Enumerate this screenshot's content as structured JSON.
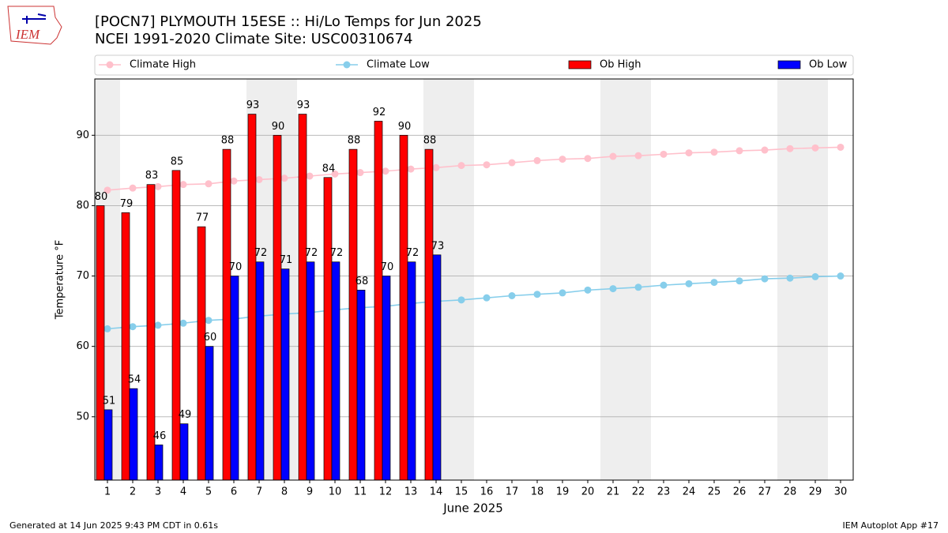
{
  "logo": "IEM",
  "chart_data": {
    "type": "bar",
    "title": "[POCN7] PLYMOUTH 15ESE :: Hi/Lo Temps for Jun 2025",
    "subtitle": "NCEI 1991-2020 Climate Site: USC00310674",
    "x_label": "June 2025",
    "y_label": "Temperature °F",
    "x": [
      1,
      2,
      3,
      4,
      5,
      6,
      7,
      8,
      9,
      10,
      11,
      12,
      13,
      14,
      15,
      16,
      17,
      18,
      19,
      20,
      21,
      22,
      23,
      24,
      25,
      26,
      27,
      28,
      29,
      30
    ],
    "xlim": [
      0.5,
      30.5
    ],
    "xticks": [
      1,
      2,
      3,
      4,
      5,
      6,
      7,
      8,
      9,
      10,
      11,
      12,
      13,
      14,
      15,
      16,
      17,
      18,
      19,
      20,
      21,
      22,
      23,
      24,
      25,
      26,
      27,
      28,
      29,
      30
    ],
    "ylim": [
      41,
      98
    ],
    "yticks": [
      50,
      60,
      70,
      80,
      90
    ],
    "grid": true,
    "shaded_x": [
      1,
      7,
      8,
      14,
      15,
      21,
      22,
      28,
      29
    ],
    "shade_color": "#eeeeee",
    "legend": "top",
    "series": [
      {
        "name": "Climate High",
        "kind": "line",
        "color": "#ffc0cb",
        "values": [
          82.2,
          82.5,
          82.7,
          83.0,
          83.1,
          83.5,
          83.7,
          83.9,
          84.2,
          84.5,
          84.7,
          84.9,
          85.2,
          85.4,
          85.7,
          85.8,
          86.1,
          86.4,
          86.6,
          86.7,
          87.0,
          87.1,
          87.3,
          87.5,
          87.6,
          87.8,
          87.9,
          88.1,
          88.2,
          88.3
        ]
      },
      {
        "name": "Climate Low",
        "kind": "line",
        "color": "#87ceeb",
        "values": [
          62.5,
          62.8,
          63.0,
          63.3,
          63.7,
          63.9,
          64.3,
          64.6,
          64.8,
          65.2,
          65.5,
          65.7,
          66.1,
          66.4,
          66.6,
          66.9,
          67.2,
          67.4,
          67.6,
          68.0,
          68.2,
          68.4,
          68.7,
          68.9,
          69.1,
          69.3,
          69.6,
          69.7,
          69.9,
          70.0
        ]
      },
      {
        "name": "Ob High",
        "kind": "bar",
        "color": "#ff0000",
        "values": [
          80,
          79,
          83,
          85,
          77,
          88,
          93,
          90,
          93,
          84,
          88,
          92,
          90,
          88,
          null,
          null,
          null,
          null,
          null,
          null,
          null,
          null,
          null,
          null,
          null,
          null,
          null,
          null,
          null,
          null
        ]
      },
      {
        "name": "Ob Low",
        "kind": "bar",
        "color": "#0000ff",
        "values": [
          51,
          54,
          46,
          49,
          60,
          70,
          72,
          71,
          72,
          72,
          68,
          70,
          72,
          73,
          null,
          null,
          null,
          null,
          null,
          null,
          null,
          null,
          null,
          null,
          null,
          null,
          null,
          null,
          null,
          null
        ]
      }
    ]
  },
  "footer": {
    "left": "Generated at 14 Jun 2025 9:43 PM CDT in 0.61s",
    "right": "IEM Autoplot App #17"
  }
}
